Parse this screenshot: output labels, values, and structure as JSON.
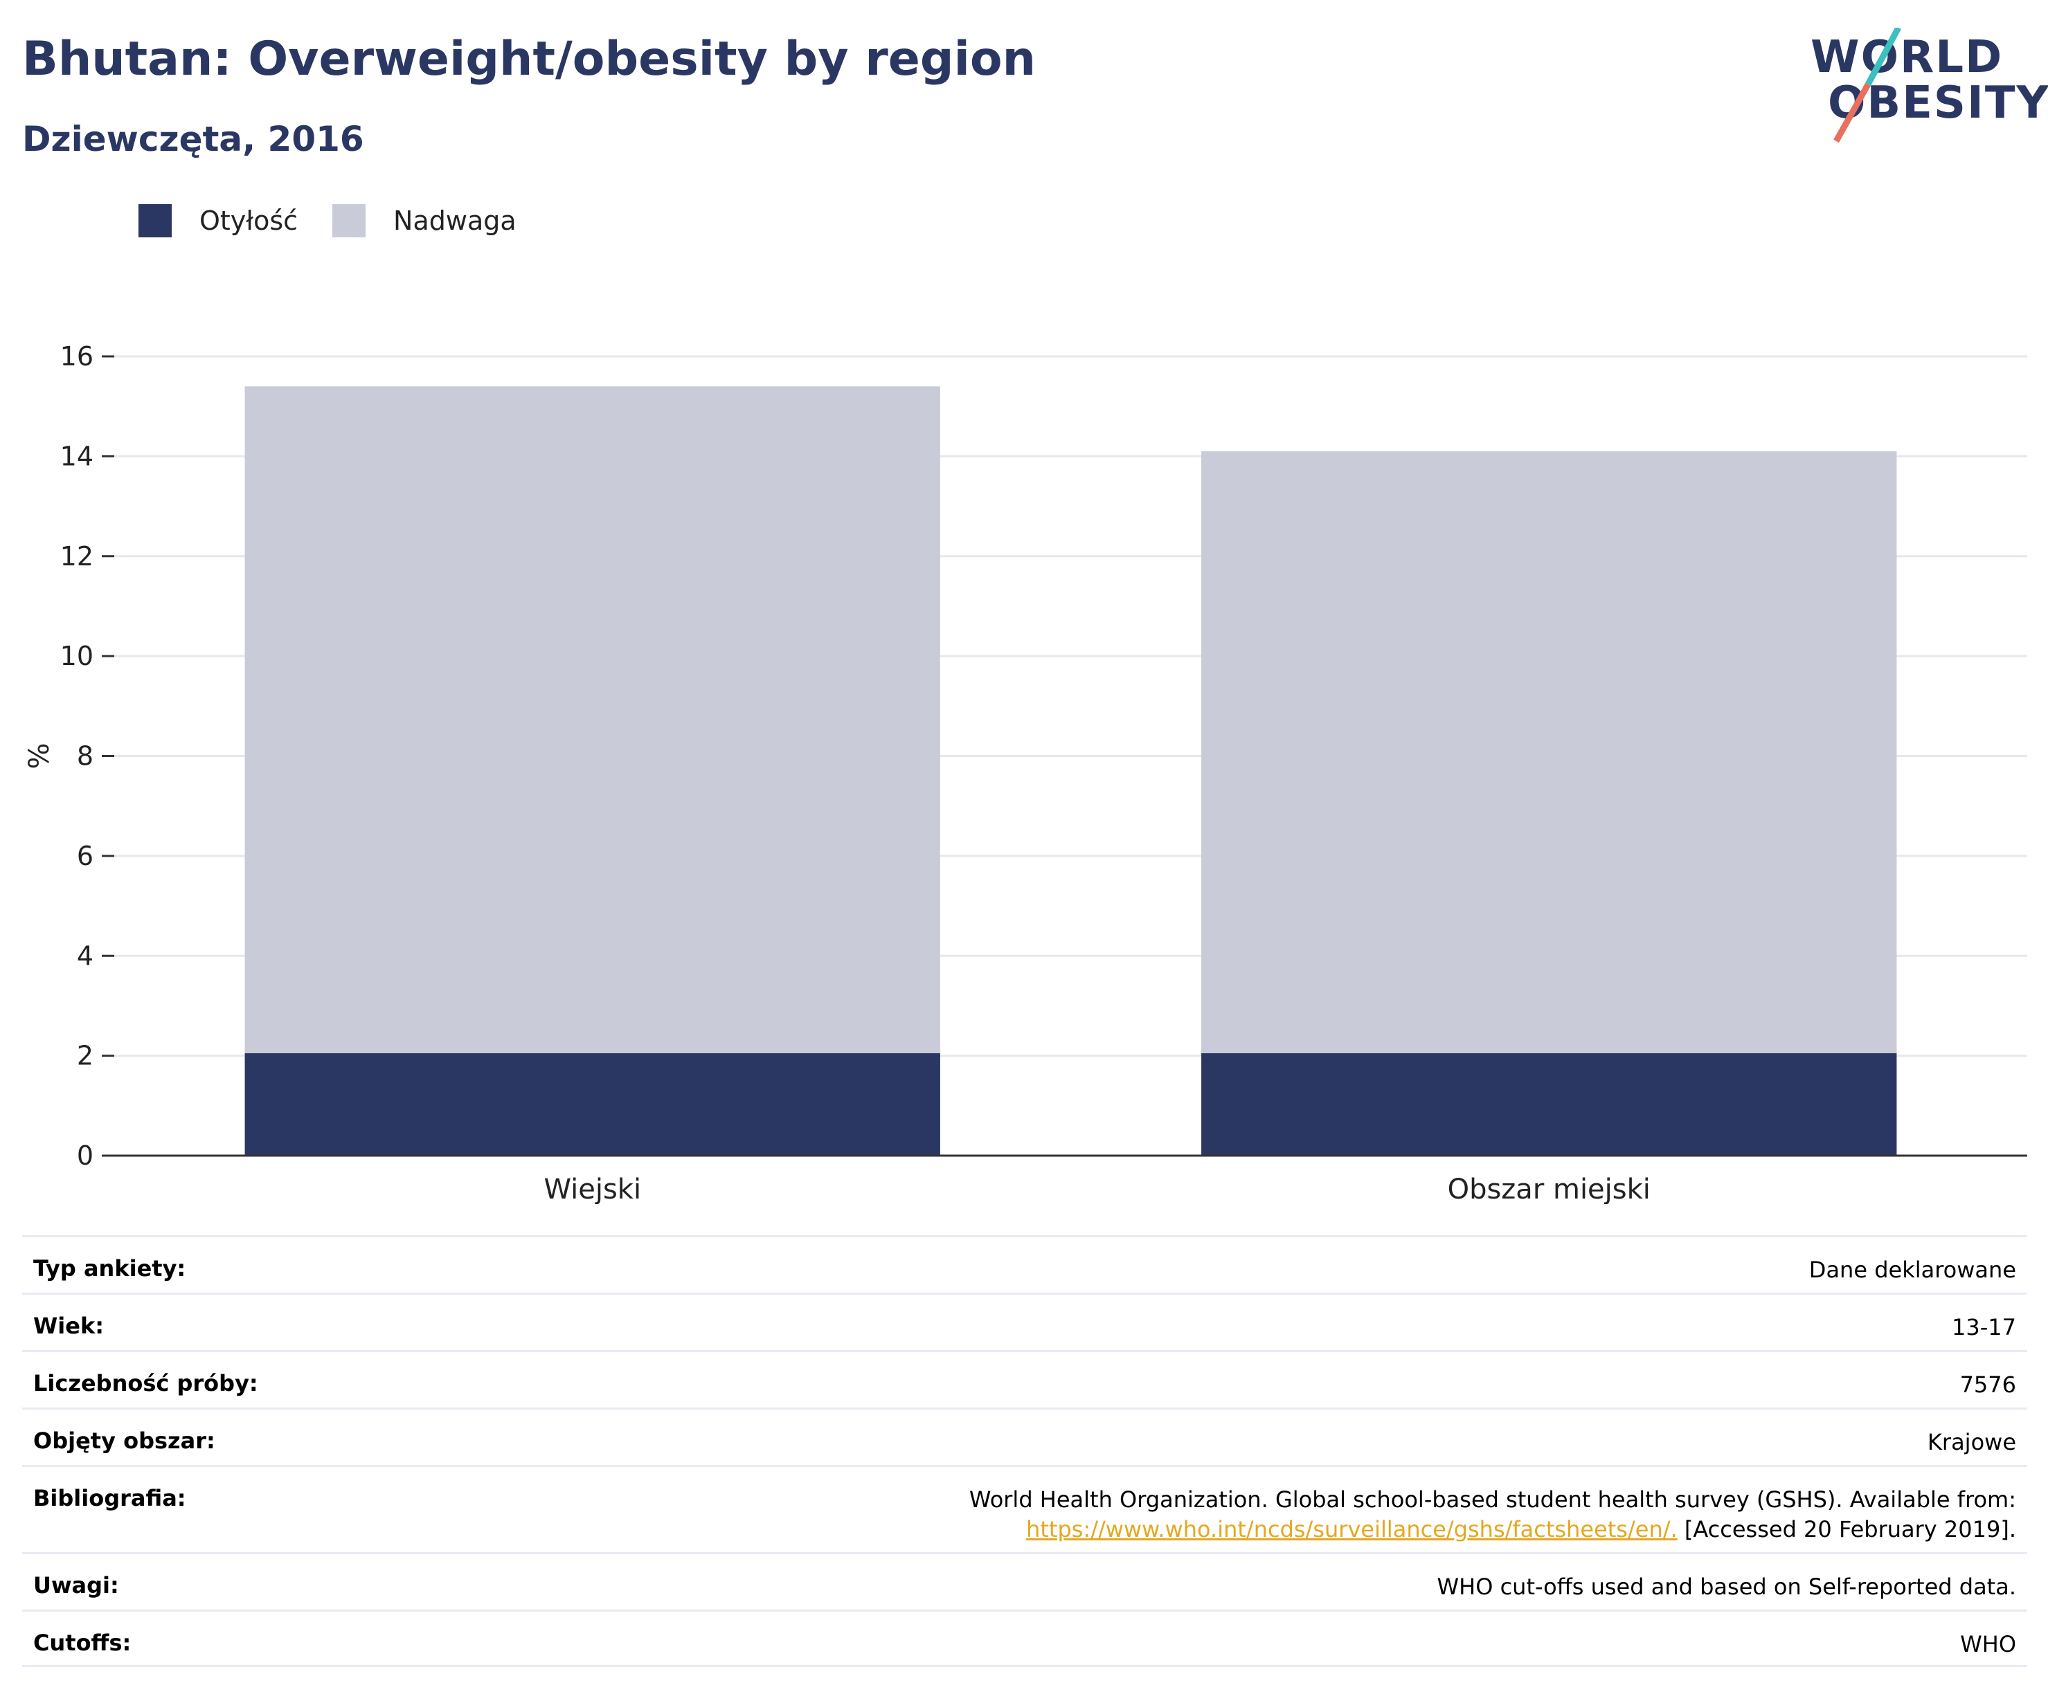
{
  "header": {
    "title": "Bhutan: Overweight/obesity by region",
    "subtitle": "Dziewczęta, 2016"
  },
  "logo": {
    "line1": "WORLD",
    "line2": "OBESITY",
    "slash_colors": [
      "#3bbfbf",
      "#e8705e"
    ]
  },
  "colors": {
    "obesity": "#2b3763",
    "overweight": "#c9ccd8",
    "grid": "#e6e8ef",
    "axis": "#333333",
    "link": "#e4a81f"
  },
  "legend": [
    {
      "label": "Otyłość",
      "color": "#2b3763"
    },
    {
      "label": "Nadwaga",
      "color": "#c9ccd8"
    }
  ],
  "chart_data": {
    "type": "bar",
    "stacked": true,
    "categories": [
      "Wiejski",
      "Obszar miejski"
    ],
    "series": [
      {
        "name": "Otyłość",
        "values": [
          2.05,
          2.05
        ]
      },
      {
        "name": "Nadwaga",
        "values": [
          13.35,
          12.05
        ]
      }
    ],
    "ylabel": "%",
    "ylim": [
      0,
      16
    ],
    "yticks": [
      0,
      2,
      4,
      6,
      8,
      10,
      12,
      14,
      16
    ],
    "grid": true,
    "legend_position": "top-left"
  },
  "info": [
    {
      "label": "Typ ankiety:",
      "value": "Dane deklarowane"
    },
    {
      "label": "Wiek:",
      "value": "13-17"
    },
    {
      "label": "Liczebność próby:",
      "value": "7576"
    },
    {
      "label": "Objęty obszar:",
      "value": "Krajowe"
    },
    {
      "label": "Bibliografia:",
      "value": "World Health Organization. Global school-based student health survey (GSHS). Available from:",
      "link": "https://www.who.int/ncds/surveillance/gshs/factsheets/en/.",
      "value_suffix": " [Accessed 20 February 2019]."
    },
    {
      "label": "Uwagi:",
      "value": "WHO cut-offs used and based on Self-reported data."
    },
    {
      "label": "Cutoffs:",
      "value": "WHO"
    }
  ]
}
